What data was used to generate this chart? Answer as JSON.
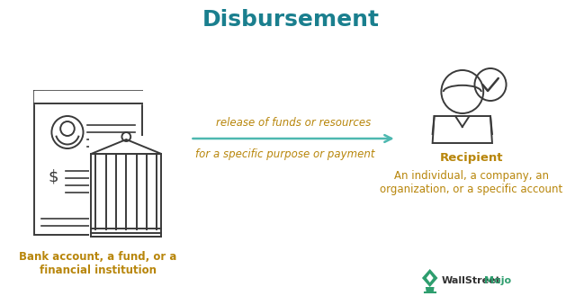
{
  "title": "Disbursement",
  "title_color": "#1a7f8e",
  "title_fontsize": 18,
  "title_fontweight": "bold",
  "bg_color": "#ffffff",
  "arrow_color": "#4db8b0",
  "arrow_text1": "release of funds or resources",
  "arrow_text2": "for a specific purpose or payment",
  "arrow_text_color": "#b8860b",
  "arrow_text_fontsize": 8.5,
  "left_label": "Bank account, a fund, or a\nfinancial institution",
  "left_label_color": "#b8860b",
  "right_label_bold": "Recipient",
  "right_label_sub": "An individual, a company, an\norganization, or a specific account",
  "right_label_color": "#b8860b",
  "label_fontsize": 8.5,
  "wsm_color_wall": "#333333",
  "wsm_color_mojo": "#2e9e6e",
  "wsm_fontsize": 8,
  "icon_color": "#3a3a3a",
  "check_color": "#3a3a3a",
  "fig_w": 6.49,
  "fig_h": 3.39,
  "dpi": 100
}
